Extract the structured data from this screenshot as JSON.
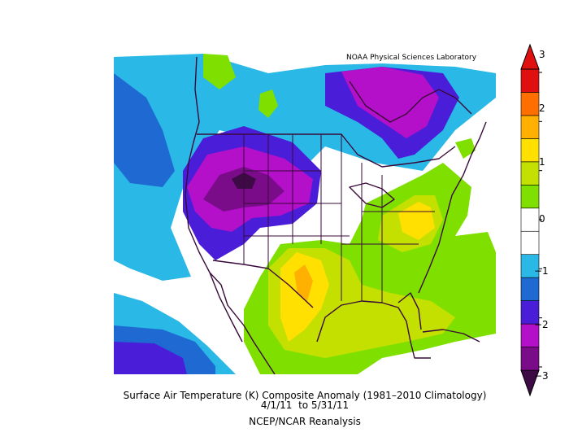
{
  "map": {
    "credit": "NOAA Physical Sciences Laboratory",
    "caption_line1": "Surface Air Temperature (K) Composite Anomaly (1981–2010 Climatology)",
    "caption_line2": "4/1/11  to 5/31/11",
    "caption_line3": "NCEP/NCAR Reanalysis"
  },
  "colorbar": {
    "tick_labels": [
      "3",
      "2",
      "1",
      "0",
      "−1",
      "−2",
      "−3"
    ],
    "colors": [
      "#7a0c8a",
      "#b40fc9",
      "#4a1ed9",
      "#1e6ad2",
      "#2ab8e6",
      "#ffffff",
      "#ffffff",
      "#7fe000",
      "#c4e000",
      "#ffe000",
      "#ffb000",
      "#ff6f00",
      "#e01010"
    ],
    "bottom_arrow_color": "#3d0a46",
    "top_arrow_color": "#e01010"
  },
  "palette": {
    "ocean_anomaly_neg1": "#2ab8e6",
    "neg2": "#4a1ed9",
    "neg2_5": "#b40fc9",
    "neg3": "#7a0c8a",
    "neg_strong": "#3d0a46",
    "pos1": "#7fe000",
    "pos1_5": "#c4e000",
    "pos2": "#ffe000",
    "pos2_5": "#ffb000",
    "pos3": "#ff6f00",
    "coast": "#3a0a3a"
  }
}
